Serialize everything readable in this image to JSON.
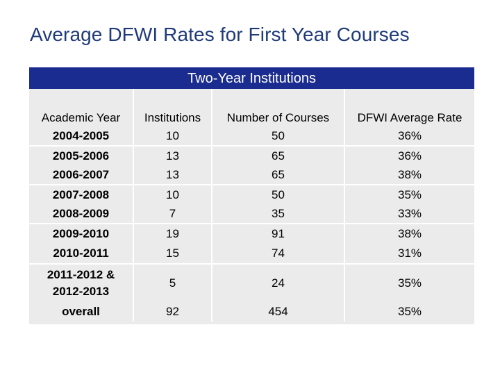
{
  "title": "Average DFWI Rates for First Year Courses",
  "table": {
    "caption": "Two-Year Institutions",
    "columns": [
      "Academic Year",
      "Institutions",
      "Number of Courses",
      "DFWI Average Rate"
    ],
    "rows": [
      {
        "year": "2004-2005",
        "institutions": "10",
        "courses": "50",
        "rate": "36%"
      },
      {
        "year": "2005-2006",
        "institutions": "13",
        "courses": "65",
        "rate": "36%"
      },
      {
        "year": "2006-2007",
        "institutions": "13",
        "courses": "65",
        "rate": "38%"
      },
      {
        "year": "2007-2008",
        "institutions": "10",
        "courses": "50",
        "rate": "35%"
      },
      {
        "year": "2008-2009",
        "institutions": "7",
        "courses": "35",
        "rate": "33%"
      },
      {
        "year": "2009-2010",
        "institutions": "19",
        "courses": "91",
        "rate": "38%"
      },
      {
        "year": "2010-2011",
        "institutions": "15",
        "courses": "74",
        "rate": "31%"
      },
      {
        "year_line1": "2011-2012 &",
        "year_line2": "2012-2013",
        "institutions": "5",
        "courses": "24",
        "rate": "35%"
      },
      {
        "year": "overall",
        "institutions": "92",
        "courses": "454",
        "rate": "35%"
      }
    ]
  },
  "colors": {
    "title": "#1f3a7a",
    "header_bg": "#1a2c8f",
    "table_bg": "#ecebeb"
  }
}
